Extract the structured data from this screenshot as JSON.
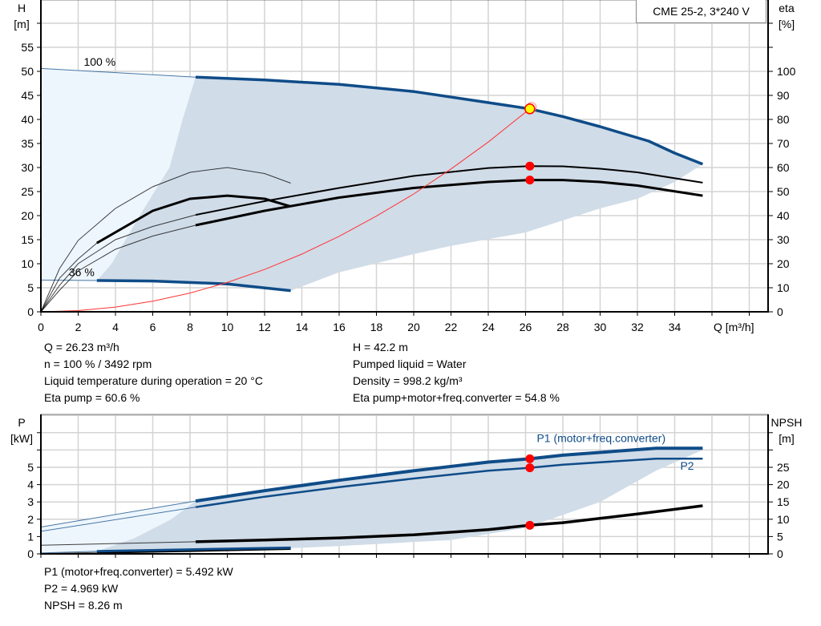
{
  "legend_box": {
    "title": "CME 25-2, 3*240 V"
  },
  "info_top": {
    "left": [
      "Q = 26.23 m³/h",
      "n = 100 % / 3492 rpm",
      "Liquid temperature during operation = 20 °C",
      "Eta pump = 60.6 %"
    ],
    "right": [
      "H = 42.2 m",
      "Pumped liquid = Water",
      "Density = 998.2 kg/m³",
      "Eta pump+motor+freq.converter = 54.8 %"
    ]
  },
  "info_bottom": [
    "P1 (motor+freq.converter) = 5.492 kW",
    "P2 = 4.969 kW",
    "NPSH = 8.26 m"
  ],
  "colors": {
    "head_curve": "#0f4c88",
    "efficiency_curve": "#000000",
    "system_curve": "#ff3333",
    "operating_range_fill": "#d0dce8",
    "extended_range_fill": "#eef6fd",
    "duty_point": "#ff0000",
    "duty_point_head": "#ffff00",
    "grid": "#d4d4d4"
  },
  "chart_data": [
    {
      "type": "line",
      "xlabel": "Q [m³/h]",
      "ylabel_left": [
        "H",
        "[m]"
      ],
      "ylabel_right": [
        "eta",
        "[%]"
      ],
      "xlim": [
        0,
        39
      ],
      "ylim_left": [
        0,
        65
      ],
      "ylim_right": [
        0,
        130
      ],
      "x_ticks": [
        0,
        2,
        4,
        6,
        8,
        10,
        12,
        14,
        16,
        18,
        20,
        22,
        24,
        26,
        28,
        30,
        32,
        34
      ],
      "y_ticks_left": [
        0,
        5,
        10,
        15,
        20,
        25,
        30,
        35,
        40,
        45,
        50,
        55
      ],
      "y_ticks_right": [
        0,
        10,
        20,
        30,
        40,
        50,
        60,
        70,
        80,
        90,
        100
      ],
      "grid": true,
      "annotations": [
        {
          "text": "100 %",
          "x": 2.3,
          "y": 51.2
        },
        {
          "text": "36 %",
          "x": 1.5,
          "y": 7.4
        }
      ],
      "operating_range": [
        [
          8.3,
          48.8
        ],
        [
          12,
          48.2
        ],
        [
          16,
          47.3
        ],
        [
          20,
          45.8
        ],
        [
          24,
          43.5
        ],
        [
          26.23,
          42.2
        ],
        [
          28,
          40.6
        ],
        [
          30,
          38.5
        ],
        [
          32.6,
          35.5
        ],
        [
          34,
          33
        ],
        [
          35.5,
          30.7
        ],
        [
          34,
          27
        ],
        [
          32,
          23.5
        ],
        [
          30,
          21.5
        ],
        [
          28,
          19
        ],
        [
          26,
          16.5
        ],
        [
          22,
          13.7
        ],
        [
          20,
          12
        ],
        [
          16,
          8.2
        ],
        [
          13.4,
          4.4
        ],
        [
          10,
          5.8
        ],
        [
          6,
          6.4
        ],
        [
          3,
          6.5
        ],
        [
          3.8,
          10
        ],
        [
          5.3,
          20
        ],
        [
          6.9,
          30
        ],
        [
          7.6,
          40
        ],
        [
          8.3,
          48.8
        ]
      ],
      "extended_range": [
        [
          0,
          50.6
        ],
        [
          8.3,
          48.8
        ],
        [
          7.6,
          40
        ],
        [
          6.9,
          30
        ],
        [
          5.3,
          20
        ],
        [
          3.8,
          10
        ],
        [
          3,
          6.5
        ],
        [
          0,
          6.6
        ]
      ],
      "series": [
        {
          "role": "head-100",
          "axis": "left",
          "color": "#0f4c88",
          "thin_to": 8.3,
          "points": [
            [
              0,
              50.6
            ],
            [
              8.3,
              48.8
            ],
            [
              12,
              48.2
            ],
            [
              16,
              47.3
            ],
            [
              20,
              45.8
            ],
            [
              24,
              43.5
            ],
            [
              26.23,
              42.2
            ],
            [
              28,
              40.6
            ],
            [
              30,
              38.5
            ],
            [
              32.6,
              35.5
            ],
            [
              34,
              33
            ],
            [
              35.5,
              30.7
            ]
          ]
        },
        {
          "role": "head-36",
          "axis": "left",
          "color": "#0f4c88",
          "thin_to": 3,
          "points": [
            [
              0,
              6.6
            ],
            [
              3,
              6.5
            ],
            [
              6,
              6.4
            ],
            [
              10,
              5.8
            ],
            [
              13.4,
              4.4
            ]
          ]
        },
        {
          "role": "eta-pump-100",
          "axis": "right",
          "color": "#000000",
          "thin_to": 8.3,
          "width": 2,
          "points": [
            [
              0,
              0
            ],
            [
              1,
              11
            ],
            [
              2,
              20
            ],
            [
              4,
              30
            ],
            [
              6,
              35.5
            ],
            [
              8.3,
              40.3
            ],
            [
              12,
              46
            ],
            [
              16,
              51.5
            ],
            [
              20,
              56.5
            ],
            [
              24,
              59.8
            ],
            [
              26.23,
              60.6
            ],
            [
              28,
              60.5
            ],
            [
              30,
              59.5
            ],
            [
              32,
              58
            ],
            [
              35.5,
              53.7
            ]
          ]
        },
        {
          "role": "eta-total-100",
          "axis": "right",
          "color": "#000000",
          "thin_to": 8.3,
          "width": 3,
          "points": [
            [
              0,
              0
            ],
            [
              1,
              9
            ],
            [
              2,
              17
            ],
            [
              4,
              26
            ],
            [
              6,
              31.5
            ],
            [
              8.3,
              36
            ],
            [
              12,
              42
            ],
            [
              16,
              47.5
            ],
            [
              20,
              51.5
            ],
            [
              24,
              54
            ],
            [
              26.23,
              54.8
            ],
            [
              28,
              54.8
            ],
            [
              30,
              54
            ],
            [
              32,
              52.5
            ],
            [
              35.5,
              48.3
            ]
          ]
        },
        {
          "role": "eta-pump-36",
          "axis": "right",
          "color": "#000000",
          "thin_to": 14,
          "points": [
            [
              0,
              0
            ],
            [
              1,
              18
            ],
            [
              2,
              29.7
            ],
            [
              4,
              43
            ],
            [
              6,
              52
            ],
            [
              8,
              58
            ],
            [
              10,
              60
            ],
            [
              12,
              57.5
            ],
            [
              13.4,
              53.5
            ]
          ]
        },
        {
          "role": "eta-total-36",
          "axis": "right",
          "color": "#000000",
          "thin_to": 3,
          "width": 3,
          "points": [
            [
              0,
              0
            ],
            [
              1,
              14
            ],
            [
              2,
              22
            ],
            [
              3,
              28.6
            ],
            [
              6,
              42
            ],
            [
              8,
              47
            ],
            [
              10,
              48.3
            ],
            [
              12,
              47
            ],
            [
              13.4,
              43.8
            ]
          ]
        },
        {
          "role": "system-curve",
          "axis": "left",
          "color": "#ff3333",
          "thin_to": 99,
          "points": [
            [
              0,
              0
            ],
            [
              2,
              0.25
            ],
            [
              4,
              0.98
            ],
            [
              6,
              2.2
            ],
            [
              8,
              3.9
            ],
            [
              10,
              6.1
            ],
            [
              12,
              8.8
            ],
            [
              14,
              12
            ],
            [
              16,
              15.7
            ],
            [
              18,
              19.9
            ],
            [
              20,
              24.5
            ],
            [
              22,
              29.7
            ],
            [
              24,
              35.3
            ],
            [
              26.23,
              42.2
            ]
          ]
        }
      ],
      "duty_points": [
        {
          "x": 26.23,
          "y": 42.2,
          "axis": "left",
          "kind": "head"
        },
        {
          "x": 26.23,
          "y": 60.6,
          "axis": "right"
        },
        {
          "x": 26.23,
          "y": 54.8,
          "axis": "right"
        }
      ]
    },
    {
      "type": "line",
      "ylabel_left": [
        "P",
        "[kW]"
      ],
      "ylabel_right": [
        "NPSH",
        "[m]"
      ],
      "xlim": [
        0,
        39
      ],
      "ylim_left": [
        0,
        8
      ],
      "ylim_right": [
        0,
        40
      ],
      "y_ticks_left": [
        0,
        1,
        2,
        3,
        4,
        5
      ],
      "y_ticks_right": [
        0,
        5,
        10,
        15,
        20,
        25
      ],
      "grid": true,
      "annotations": [
        {
          "text": "P1 (motor+freq.converter)",
          "x": 26.6,
          "y": 6.45
        },
        {
          "text": "P2",
          "x": 34.3,
          "y": 4.85
        }
      ],
      "operating_range": [
        [
          8.3,
          3.05
        ],
        [
          12,
          3.65
        ],
        [
          16,
          4.25
        ],
        [
          20,
          4.8
        ],
        [
          24,
          5.3
        ],
        [
          26.23,
          5.49
        ],
        [
          28,
          5.7
        ],
        [
          33,
          6.1
        ],
        [
          35.5,
          6.0
        ],
        [
          33,
          4.8
        ],
        [
          30,
          3.0
        ],
        [
          26,
          1.5
        ],
        [
          22,
          0.8
        ],
        [
          16,
          0.45
        ],
        [
          13.4,
          0.33
        ],
        [
          8,
          0.25
        ],
        [
          3,
          0.15
        ],
        [
          5,
          0.9
        ],
        [
          7,
          2.0
        ],
        [
          8.3,
          3.05
        ]
      ],
      "extended_range": [
        [
          0,
          1.55
        ],
        [
          8.3,
          3.05
        ],
        [
          7,
          2.0
        ],
        [
          5,
          0.9
        ],
        [
          3,
          0.15
        ],
        [
          0,
          0.05
        ]
      ],
      "series": [
        {
          "role": "p1",
          "axis": "left",
          "color": "#0f4c88",
          "thin_to": 8.3,
          "width": 4,
          "points": [
            [
              0,
              1.55
            ],
            [
              8.3,
              3.05
            ],
            [
              12,
              3.65
            ],
            [
              16,
              4.25
            ],
            [
              20,
              4.8
            ],
            [
              24,
              5.3
            ],
            [
              26.23,
              5.49
            ],
            [
              28,
              5.7
            ],
            [
              33,
              6.1
            ],
            [
              35.5,
              6.1
            ]
          ]
        },
        {
          "role": "p2",
          "axis": "left",
          "color": "#0f4c88",
          "thin_to": 8.3,
          "width": 2.5,
          "points": [
            [
              0,
              1.3
            ],
            [
              8.3,
              2.7
            ],
            [
              12,
              3.3
            ],
            [
              16,
              3.85
            ],
            [
              20,
              4.35
            ],
            [
              24,
              4.8
            ],
            [
              26.23,
              4.97
            ],
            [
              28,
              5.15
            ],
            [
              33,
              5.5
            ],
            [
              35.5,
              5.5
            ]
          ]
        },
        {
          "role": "npsh",
          "axis": "right",
          "color": "#000000",
          "thin_to": 8.3,
          "width": 3.5,
          "points": [
            [
              0,
              2.5
            ],
            [
              8.3,
              3.5
            ],
            [
              12,
              4
            ],
            [
              16,
              4.6
            ],
            [
              20,
              5.5
            ],
            [
              24,
              7
            ],
            [
              26.23,
              8.26
            ],
            [
              28,
              9
            ],
            [
              32,
              11.5
            ],
            [
              35.5,
              13.9
            ]
          ]
        },
        {
          "role": "npsh-36",
          "axis": "right",
          "color": "#000000",
          "thin_to": 3,
          "width": 3,
          "points": [
            [
              0,
              0.1
            ],
            [
              3,
              0.4
            ],
            [
              8,
              0.9
            ],
            [
              13.4,
              1.5
            ]
          ]
        },
        {
          "role": "p-36",
          "axis": "left",
          "color": "#0f4c88",
          "thin_to": 3,
          "width": 3,
          "points": [
            [
              0,
              0.05
            ],
            [
              3,
              0.15
            ],
            [
              8,
              0.25
            ],
            [
              13.4,
              0.35
            ]
          ]
        }
      ],
      "duty_points": [
        {
          "x": 26.23,
          "y": 5.492,
          "axis": "left"
        },
        {
          "x": 26.23,
          "y": 4.969,
          "axis": "left"
        },
        {
          "x": 26.23,
          "y": 8.26,
          "axis": "right"
        }
      ]
    }
  ]
}
